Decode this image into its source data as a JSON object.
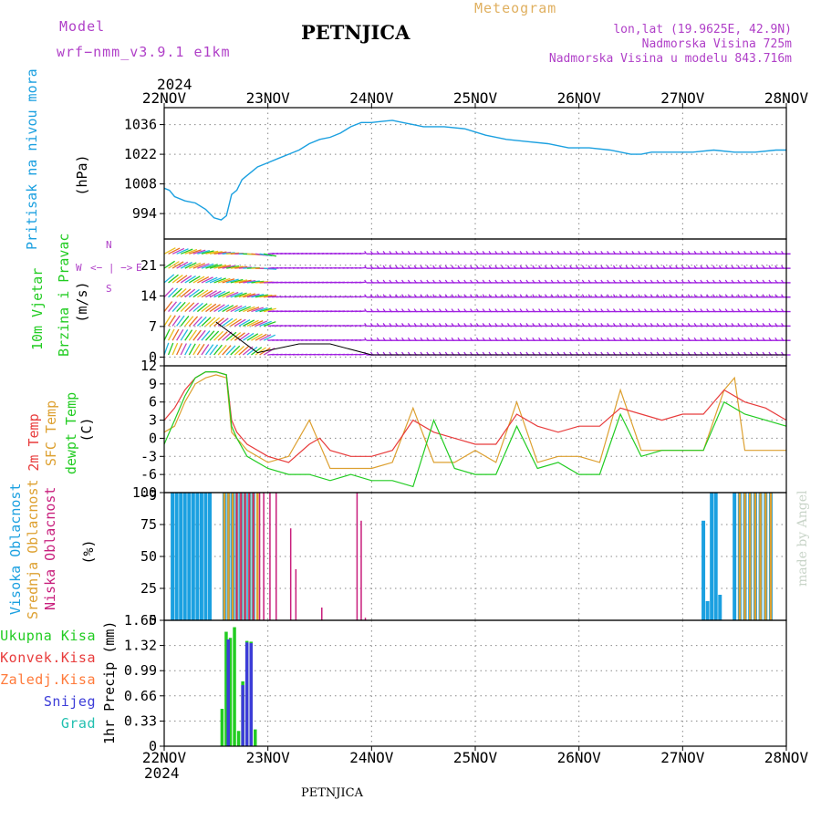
{
  "header": {
    "model_label": "Model",
    "model_name": "wrf−nmm_v3.9.1  e1km",
    "title": "PETNJICA",
    "meteogram": "Meteogram",
    "lonlat": "lon,lat (19.9625E, 42.9N)",
    "elevation": "Nadmorska Visina 725m",
    "model_elevation": "Nadmorska Visina u modelu 843.716m",
    "year_top": "2024",
    "year_bottom": "2024",
    "footer_title": "PETNJICA",
    "credit": "made by Angel"
  },
  "colors": {
    "pressure": "#1ba0e0",
    "wind_green": "#22b822",
    "wind_label": "#22cc22",
    "temp_red": "#e83c3c",
    "temp_orange": "#dda030",
    "temp_green": "#22cc22",
    "cloud_high": "#1ba0e0",
    "cloud_mid": "#dda030",
    "cloud_low": "#c81e7c",
    "purple_text": "#b040c8",
    "meteogram_text": "#e0b060",
    "precip_total": "#22cc22",
    "precip_conv": "#e83c3c",
    "precip_strat": "#ff7a3a",
    "precip_snow": "#3c3cd8",
    "precip_hail": "#22c0b0"
  },
  "axes": {
    "x_ticks": [
      "22NOV",
      "23NOV",
      "24NOV",
      "25NOV",
      "26NOV",
      "27NOV",
      "28NOV"
    ],
    "x_range_days": [
      0,
      6
    ]
  },
  "panels": {
    "pressure": {
      "label": "Pritisak na nivou mora",
      "unit": "(hPa)",
      "ylim": [
        982,
        1044
      ],
      "yticks": [
        "994",
        "1008",
        "1022",
        "1036"
      ]
    },
    "wind": {
      "label1": "10m Vjetar",
      "label2": "Brzina i Pravac",
      "unit": "(m/s)",
      "ylim": [
        -2,
        27
      ],
      "yticks": [
        "0",
        "7",
        "14",
        "21"
      ],
      "compass_w": "W",
      "compass_n": "N",
      "compass_e": "E",
      "compass_s": "S",
      "compass_arrow": "<− | −>"
    },
    "temperature": {
      "label_2m": "2m Temp",
      "label_sfc": "SFC Temp",
      "label_dew": "dewpt Temp",
      "unit": "(C)",
      "ylim": [
        -9,
        12
      ],
      "yticks": [
        "-6",
        "-3",
        "0",
        "3",
        "6",
        "9",
        "12"
      ],
      "ytick_partial": "−9"
    },
    "clouds": {
      "label_high": "Visoka Oblacnost",
      "label_mid": "Srednja Oblacnost",
      "label_low": "Niska Oblacnost",
      "unit": "(%)",
      "ylim": [
        0,
        100
      ],
      "yticks": [
        "0",
        "25",
        "50",
        "75",
        "100"
      ]
    },
    "precip": {
      "unit_label": "1hr Precip (mm)",
      "ylim": [
        0,
        1.65
      ],
      "yticks": [
        "0",
        "0.33",
        "0.66",
        "0.99",
        "1.32",
        "1.65"
      ],
      "legend": [
        "Ukupna Kisa",
        "Konvek.Kisa",
        "Zaledj.Kisa",
        "Snijeg",
        "Grad"
      ]
    }
  },
  "chart_data": [
    {
      "type": "line",
      "name": "pressure",
      "x": [
        0,
        0.05,
        0.1,
        0.2,
        0.3,
        0.4,
        0.48,
        0.55,
        0.6,
        0.65,
        0.7,
        0.75,
        0.8,
        0.85,
        0.9,
        1.0,
        1.1,
        1.2,
        1.3,
        1.4,
        1.5,
        1.6,
        1.7,
        1.8,
        1.9,
        2.0,
        2.1,
        2.2,
        2.3,
        2.4,
        2.5,
        2.7,
        2.9,
        3.1,
        3.3,
        3.5,
        3.7,
        3.9,
        4.1,
        4.3,
        4.5,
        4.6,
        4.7,
        4.9,
        5.1,
        5.3,
        5.5,
        5.7,
        5.9,
        6.0
      ],
      "y": [
        1006,
        1005,
        1002,
        1000,
        999,
        996,
        992,
        991,
        993,
        1003,
        1005,
        1010,
        1012,
        1014,
        1016,
        1018,
        1020,
        1022,
        1024,
        1027,
        1029,
        1030,
        1032,
        1035,
        1037,
        1037,
        1037.5,
        1038,
        1037,
        1036,
        1035,
        1035,
        1034,
        1031,
        1029,
        1028,
        1027,
        1025,
        1025,
        1024,
        1022,
        1022,
        1023,
        1023,
        1023,
        1024,
        1023,
        1023,
        1024,
        1024
      ]
    },
    {
      "type": "line",
      "name": "2m temp",
      "x": [
        0,
        0.1,
        0.2,
        0.3,
        0.4,
        0.5,
        0.6,
        0.65,
        0.7,
        0.8,
        1.0,
        1.2,
        1.4,
        1.5,
        1.6,
        1.8,
        2.0,
        2.2,
        2.4,
        2.6,
        2.8,
        3.0,
        3.2,
        3.4,
        3.6,
        3.8,
        4.0,
        4.2,
        4.4,
        4.6,
        4.8,
        5.0,
        5.2,
        5.4,
        5.6,
        5.8,
        6.0
      ],
      "y": [
        3,
        5,
        8,
        10,
        11,
        11,
        10.5,
        3,
        1,
        -1,
        -3,
        -4,
        -1,
        0,
        -2,
        -3,
        -3,
        -2,
        3,
        1,
        0,
        -1,
        -1,
        4,
        2,
        1,
        2,
        2,
        5,
        4,
        3,
        4,
        4,
        8,
        6,
        5,
        3
      ]
    },
    {
      "type": "line",
      "name": "SFC temp",
      "x": [
        0,
        0.1,
        0.2,
        0.3,
        0.4,
        0.5,
        0.6,
        0.65,
        0.7,
        0.8,
        1.0,
        1.2,
        1.3,
        1.4,
        1.5,
        1.6,
        1.8,
        2.0,
        2.2,
        2.4,
        2.6,
        2.8,
        3.0,
        3.2,
        3.4,
        3.6,
        3.8,
        4.0,
        4.2,
        4.4,
        4.6,
        4.8,
        5.0,
        5.2,
        5.4,
        5.5,
        5.6,
        5.8,
        6.0
      ],
      "y": [
        1,
        2,
        6,
        9,
        10,
        10.5,
        10,
        1,
        0,
        -2,
        -4,
        -3,
        0,
        3,
        -1,
        -5,
        -5,
        -5,
        -4,
        5,
        -4,
        -4,
        -2,
        -4,
        6,
        -4,
        -3,
        -3,
        -4,
        8,
        -2,
        -2,
        -2,
        -2,
        8,
        10,
        -2,
        -2,
        -2
      ]
    },
    {
      "type": "line",
      "name": "dewpt temp",
      "x": [
        0,
        0.1,
        0.2,
        0.3,
        0.4,
        0.5,
        0.6,
        0.65,
        0.7,
        0.8,
        1.0,
        1.2,
        1.4,
        1.6,
        1.8,
        2.0,
        2.2,
        2.4,
        2.6,
        2.8,
        3.0,
        3.2,
        3.4,
        3.6,
        3.8,
        4.0,
        4.2,
        4.4,
        4.6,
        4.8,
        5.0,
        5.2,
        5.4,
        5.6,
        5.8,
        6.0
      ],
      "y": [
        -1,
        3,
        7,
        10,
        11,
        11,
        10.5,
        2,
        0,
        -3,
        -5,
        -6,
        -6,
        -7,
        -6,
        -7,
        -7,
        -8,
        3,
        -5,
        -6,
        -6,
        2,
        -5,
        -4,
        -6,
        -6,
        4,
        -3,
        -2,
        -2,
        -2,
        6,
        4,
        3,
        2
      ]
    },
    {
      "type": "bar",
      "name": "clouds",
      "series": [
        {
          "name": "Visoka Oblacnost",
          "x": [
            0.08,
            0.12,
            0.16,
            0.2,
            0.24,
            0.28,
            0.32,
            0.36,
            0.4,
            0.44,
            0.58,
            0.62,
            0.66,
            0.7,
            0.74,
            0.78,
            0.82,
            0.86,
            5.2,
            5.24,
            5.28,
            5.32,
            5.36,
            5.5,
            5.55,
            5.6,
            5.65,
            5.7,
            5.75,
            5.8,
            5.85
          ],
          "values": [
            100,
            100,
            100,
            100,
            100,
            100,
            100,
            100,
            100,
            100,
            100,
            100,
            100,
            100,
            100,
            100,
            100,
            100,
            78,
            15,
            100,
            100,
            20,
            100,
            100,
            100,
            100,
            100,
            100,
            100,
            100
          ]
        },
        {
          "name": "Srednja Oblacnost",
          "x": [
            0.58,
            0.62,
            0.66,
            0.7,
            0.74,
            0.78,
            0.82,
            0.86,
            0.9,
            5.55,
            5.6,
            5.65,
            5.7,
            5.75,
            5.8,
            5.85
          ],
          "values": [
            100,
            100,
            100,
            100,
            100,
            100,
            100,
            100,
            100,
            100,
            100,
            100,
            100,
            100,
            100,
            100
          ]
        },
        {
          "name": "Niska Oblacnost",
          "x": [
            0.7,
            0.74,
            0.78,
            0.82,
            0.86,
            0.92,
            0.96,
            1.02,
            1.08,
            1.22,
            1.27,
            1.52,
            1.86,
            1.9,
            1.94
          ],
          "values": [
            100,
            100,
            100,
            100,
            100,
            100,
            100,
            100,
            100,
            72,
            40,
            10,
            100,
            78,
            2
          ]
        }
      ]
    },
    {
      "type": "bar",
      "name": "precip",
      "series": [
        {
          "name": "Ukupna Kisa",
          "x": [
            0.56,
            0.6,
            0.64,
            0.68,
            0.72,
            0.76,
            0.8,
            0.84,
            0.88
          ],
          "values": [
            0.49,
            1.5,
            1.42,
            1.56,
            0.2,
            0.85,
            1.38,
            1.37,
            0.22
          ]
        },
        {
          "name": "Snijeg",
          "x": [
            0.62,
            0.76,
            0.8,
            0.84
          ],
          "values": [
            1.4,
            0.8,
            1.36,
            1.35
          ]
        }
      ]
    }
  ]
}
